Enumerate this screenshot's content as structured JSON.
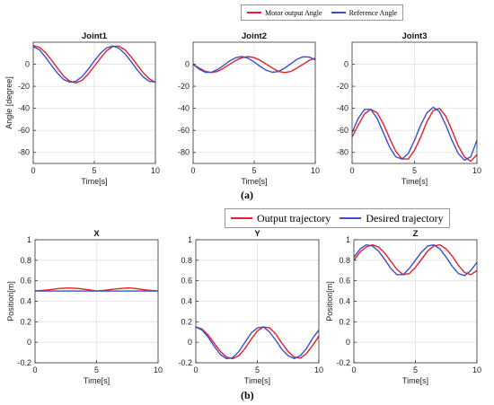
{
  "figure": {
    "caption_a": "(a)",
    "caption_b": "(b)"
  },
  "legend_a": {
    "items": [
      {
        "label": "Motor output Angle",
        "color": "#e0202a"
      },
      {
        "label": "Reference Angle",
        "color": "#3b4fc9"
      }
    ]
  },
  "legend_b": {
    "items": [
      {
        "label": "Output trajectory",
        "color": "#e0202a"
      },
      {
        "label": "Desired trajectory",
        "color": "#3b4fc9"
      }
    ]
  },
  "chart_data": [
    {
      "type": "line",
      "title": "Joint1",
      "xlabel": "Time[s]",
      "ylabel": "Angle [degree]",
      "xlim": [
        0,
        10
      ],
      "ylim": [
        -90,
        20
      ],
      "xticks": [
        0,
        5,
        10
      ],
      "yticks": [
        -80,
        -60,
        -40,
        -20,
        0
      ],
      "grid": true,
      "series": [
        {
          "name": "Motor output Angle",
          "color": "#e0202a",
          "x": [
            0,
            0.5,
            1,
            1.5,
            2,
            2.5,
            3,
            3.5,
            4,
            4.5,
            5,
            5.5,
            6,
            6.5,
            7,
            7.5,
            8,
            8.5,
            9,
            9.5,
            10
          ],
          "y": [
            17,
            15.4,
            10.7,
            3.6,
            -3.8,
            -10.9,
            -15.5,
            -16.9,
            -14.5,
            -8.9,
            -1.8,
            5.5,
            12.1,
            16.1,
            16.5,
            13.2,
            6.9,
            -0.4,
            -7.7,
            -13.3,
            -16.4
          ]
        },
        {
          "name": "Reference Angle",
          "color": "#3b4fc9",
          "x": [
            0,
            0.5,
            1,
            1.5,
            2,
            2.5,
            3,
            3.5,
            4,
            4.5,
            5,
            5.5,
            6,
            6.5,
            7,
            7.5,
            8,
            8.5,
            9,
            9.5,
            10
          ],
          "y": [
            16,
            13.2,
            6.5,
            -1.1,
            -8.3,
            -13.9,
            -16.3,
            -15.4,
            -11.2,
            -4.6,
            3.0,
            9.9,
            14.8,
            16.6,
            14.6,
            9.6,
            2.6,
            -4.9,
            -11.5,
            -15.5,
            -16.1
          ]
        }
      ]
    },
    {
      "type": "line",
      "title": "Joint2",
      "xlabel": "Time[s]",
      "ylabel": "",
      "xlim": [
        0,
        10
      ],
      "ylim": [
        -90,
        20
      ],
      "xticks": [
        0,
        5,
        10
      ],
      "yticks": [
        -80,
        -60,
        -40,
        -20,
        0
      ],
      "grid": true,
      "series": [
        {
          "name": "Motor output Angle",
          "color": "#e0202a",
          "x": [
            0,
            0.5,
            1,
            1.5,
            2,
            2.5,
            3,
            3.5,
            4,
            4.5,
            5,
            5.5,
            6,
            6.5,
            7,
            7.5,
            8,
            8.5,
            9,
            9.5,
            10
          ],
          "y": [
            0,
            -3.5,
            -6.5,
            -7.6,
            -6.5,
            -3.5,
            0,
            3.5,
            6,
            7,
            6,
            3.5,
            0,
            -3.5,
            -6.5,
            -7.6,
            -6.5,
            -3.5,
            0,
            3.5,
            5.5
          ]
        },
        {
          "name": "Reference Angle",
          "color": "#3b4fc9",
          "x": [
            0,
            0.5,
            1,
            1.5,
            2,
            2.5,
            3,
            3.5,
            4,
            4.5,
            5,
            5.5,
            6,
            6.5,
            7,
            7.5,
            8,
            8.5,
            9,
            9.5,
            10
          ],
          "y": [
            0,
            -4.5,
            -7.3,
            -7.3,
            -4.8,
            -1,
            3,
            6,
            7,
            5.5,
            2,
            -2,
            -5.5,
            -7.3,
            -6.5,
            -3.5,
            0.5,
            4.5,
            6.8,
            6.5,
            4
          ]
        }
      ]
    },
    {
      "type": "line",
      "title": "Joint3",
      "xlabel": "Time[s]",
      "ylabel": "",
      "xlim": [
        0,
        10
      ],
      "ylim": [
        -90,
        20
      ],
      "xticks": [
        0,
        5,
        10
      ],
      "yticks": [
        -80,
        -60,
        -40,
        -20,
        0
      ],
      "grid": true,
      "series": [
        {
          "name": "Motor output Angle",
          "color": "#e0202a",
          "x": [
            0,
            0.5,
            1,
            1.5,
            2,
            2.5,
            3,
            3.5,
            4,
            4.5,
            5,
            5.5,
            6,
            6.5,
            7,
            7.5,
            8,
            8.5,
            9,
            9.5,
            10
          ],
          "y": [
            -66,
            -55,
            -45,
            -41,
            -44,
            -54,
            -67,
            -79,
            -86,
            -86,
            -78,
            -66,
            -52,
            -42,
            -40,
            -47,
            -60,
            -74,
            -84,
            -88,
            -82
          ]
        },
        {
          "name": "Reference Angle",
          "color": "#3b4fc9",
          "x": [
            0,
            0.5,
            1,
            1.5,
            2,
            2.5,
            3,
            3.5,
            4,
            4.5,
            5,
            5.5,
            6,
            6.5,
            7,
            7.5,
            8,
            8.5,
            9,
            9.5,
            10
          ],
          "y": [
            -62,
            -49,
            -41,
            -41,
            -49,
            -62,
            -75,
            -84,
            -86,
            -81,
            -69,
            -55,
            -44,
            -39,
            -43,
            -55,
            -69,
            -81,
            -87,
            -84,
            -69
          ]
        }
      ]
    },
    {
      "type": "line",
      "title": "X",
      "xlabel": "Time[s]",
      "ylabel": "Position[m]",
      "xlim": [
        0,
        10
      ],
      "ylim": [
        -0.2,
        1
      ],
      "xticks": [
        0,
        5,
        10
      ],
      "yticks": [
        -0.2,
        0,
        0.2,
        0.4,
        0.6,
        0.8,
        1
      ],
      "grid": true,
      "series": [
        {
          "name": "Output trajectory",
          "color": "#e0202a",
          "x": [
            0,
            1,
            2,
            2.7,
            3.5,
            4.5,
            5,
            5.5,
            6.5,
            7.5,
            8,
            9,
            10
          ],
          "y": [
            0.5,
            0.51,
            0.525,
            0.53,
            0.525,
            0.51,
            0.5,
            0.505,
            0.52,
            0.53,
            0.528,
            0.51,
            0.5
          ]
        },
        {
          "name": "Desired trajectory",
          "color": "#3b4fc9",
          "x": [
            0,
            10
          ],
          "y": [
            0.5,
            0.5
          ]
        }
      ]
    },
    {
      "type": "line",
      "title": "Y",
      "xlabel": "Time[s]",
      "ylabel": "",
      "xlim": [
        0,
        10
      ],
      "ylim": [
        -0.2,
        1
      ],
      "xticks": [
        0,
        5,
        10
      ],
      "yticks": [
        -0.2,
        0,
        0.2,
        0.4,
        0.6,
        0.8,
        1
      ],
      "grid": true,
      "series": [
        {
          "name": "Output trajectory",
          "color": "#e0202a",
          "x": [
            0,
            0.5,
            1,
            1.5,
            2,
            2.5,
            3,
            3.5,
            4,
            4.5,
            5,
            5.5,
            6,
            6.5,
            7,
            7.5,
            8,
            8.5,
            9,
            9.5,
            10
          ],
          "y": [
            0.15,
            0.13,
            0.07,
            -0.01,
            -0.09,
            -0.145,
            -0.16,
            -0.13,
            -0.06,
            0.03,
            0.11,
            0.15,
            0.14,
            0.08,
            -0.01,
            -0.09,
            -0.145,
            -0.155,
            -0.11,
            -0.03,
            0.06
          ]
        },
        {
          "name": "Desired trajectory",
          "color": "#3b4fc9",
          "x": [
            0,
            0.5,
            1,
            1.5,
            2,
            2.5,
            3,
            3.5,
            4,
            4.5,
            5,
            5.5,
            6,
            6.5,
            7,
            7.5,
            8,
            8.5,
            9,
            9.5,
            10
          ],
          "y": [
            0.15,
            0.12,
            0.05,
            -0.04,
            -0.12,
            -0.16,
            -0.15,
            -0.09,
            0.0,
            0.09,
            0.14,
            0.15,
            0.1,
            0.02,
            -0.07,
            -0.13,
            -0.16,
            -0.13,
            -0.06,
            0.04,
            0.12
          ]
        }
      ]
    },
    {
      "type": "line",
      "title": "Z",
      "xlabel": "Time[s]",
      "ylabel": "Position[m]",
      "xlim": [
        0,
        10
      ],
      "ylim": [
        -0.2,
        1
      ],
      "xticks": [
        0,
        5,
        10
      ],
      "yticks": [
        -0.2,
        0,
        0.2,
        0.4,
        0.6,
        0.8,
        1
      ],
      "grid": true,
      "series": [
        {
          "name": "Output trajectory",
          "color": "#e0202a",
          "x": [
            0,
            0.5,
            1,
            1.5,
            2,
            2.5,
            3,
            3.5,
            4,
            4.5,
            5,
            5.5,
            6,
            6.5,
            7,
            7.5,
            8,
            8.5,
            9,
            9.5,
            10
          ],
          "y": [
            0.8,
            0.88,
            0.93,
            0.95,
            0.93,
            0.87,
            0.79,
            0.71,
            0.66,
            0.67,
            0.73,
            0.81,
            0.89,
            0.94,
            0.95,
            0.91,
            0.84,
            0.75,
            0.68,
            0.66,
            0.7
          ]
        },
        {
          "name": "Desired trajectory",
          "color": "#3b4fc9",
          "x": [
            0,
            0.5,
            1,
            1.5,
            2,
            2.5,
            3,
            3.5,
            4,
            4.5,
            5,
            5.5,
            6,
            6.5,
            7,
            7.5,
            8,
            8.5,
            9,
            9.5,
            10
          ],
          "y": [
            0.83,
            0.91,
            0.95,
            0.94,
            0.89,
            0.81,
            0.72,
            0.66,
            0.66,
            0.72,
            0.8,
            0.88,
            0.94,
            0.95,
            0.91,
            0.83,
            0.74,
            0.67,
            0.65,
            0.7,
            0.78
          ]
        }
      ]
    }
  ]
}
